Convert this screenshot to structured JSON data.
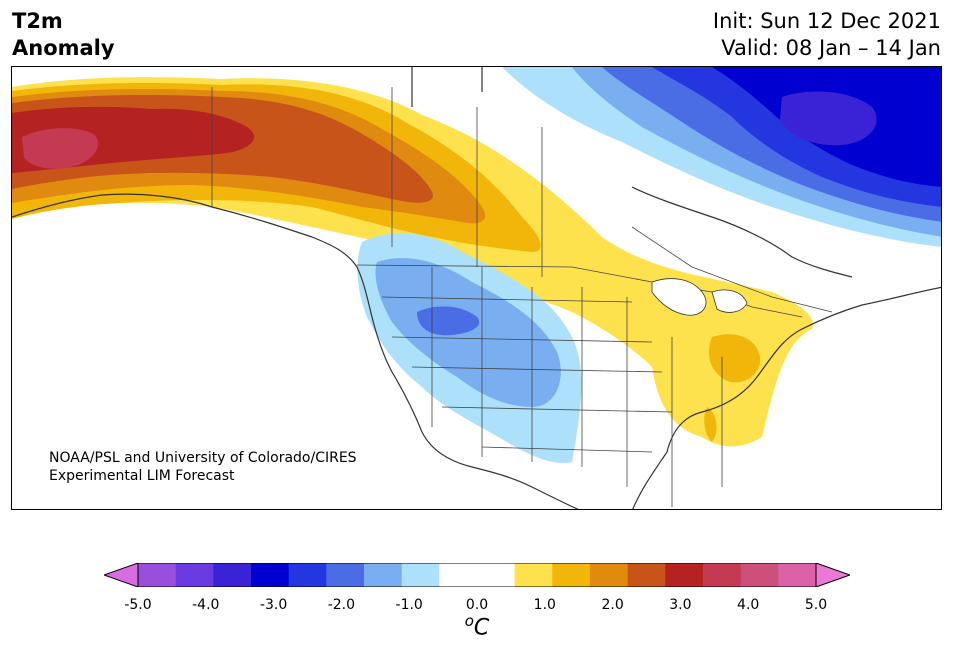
{
  "header": {
    "variable": "T2m",
    "field": "Anomaly",
    "init": "Init: Sun 12 Dec 2021",
    "valid": "Valid: 08 Jan – 14 Jan"
  },
  "credit": {
    "line1": "NOAA/PSL and University of Colorado/CIRES",
    "line2": "Experimental LIM Forecast"
  },
  "colorbar": {
    "units_base": "C",
    "units_sup": "o",
    "min": -5.0,
    "max": 5.0,
    "step": 0.5,
    "colors": [
      "#d96be3",
      "#9a4fdc",
      "#6a3be0",
      "#3a22d6",
      "#0000d0",
      "#2436e0",
      "#4a6de6",
      "#79aef1",
      "#ade0fb",
      "#ffffff",
      "#ffffff",
      "#fde24d",
      "#f2b60a",
      "#e08a10",
      "#c8541a",
      "#b42222",
      "#c43a52",
      "#cc507a",
      "#dc62a8",
      "#ea78d4"
    ],
    "ticks": [
      "-5.0",
      "-4.0",
      "-3.0",
      "-2.0",
      "-1.0",
      "0.0",
      "1.0",
      "2.0",
      "3.0",
      "4.0",
      "5.0"
    ]
  },
  "map": {
    "region": "North America",
    "features": [
      "coastlines",
      "country borders",
      "state and province borders",
      "temperature anomaly shading"
    ]
  }
}
